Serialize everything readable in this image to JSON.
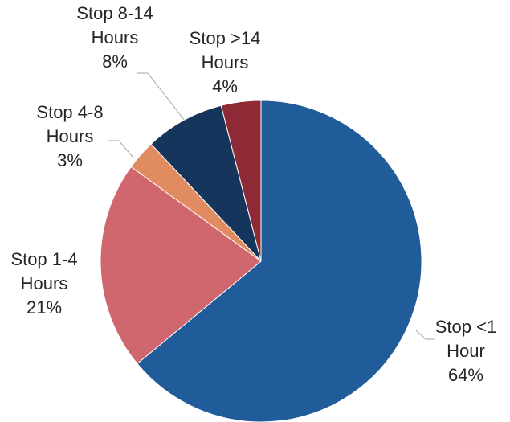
{
  "chart_data": {
    "type": "pie",
    "slices": [
      {
        "label": "Stop <1 Hour",
        "label_lines": [
          "Stop <1",
          "Hour"
        ],
        "percent_text": "64%",
        "value": 64,
        "color": "#1f5c99"
      },
      {
        "label": "Stop 1-4 Hours",
        "label_lines": [
          "Stop 1-4",
          "Hours"
        ],
        "percent_text": "21%",
        "value": 21,
        "color": "#d1676e"
      },
      {
        "label": "Stop 4-8 Hours",
        "label_lines": [
          "Stop 4-8",
          "Hours"
        ],
        "percent_text": "3%",
        "value": 3,
        "color": "#e08b60"
      },
      {
        "label": "Stop 8-14 Hours",
        "label_lines": [
          "Stop 8-14",
          "Hours"
        ],
        "percent_text": "8%",
        "value": 8,
        "color": "#16355c"
      },
      {
        "label": "Stop >14 Hours",
        "label_lines": [
          "Stop >14",
          "Hours"
        ],
        "percent_text": "4%",
        "value": 4,
        "color": "#8e2a35"
      }
    ]
  }
}
